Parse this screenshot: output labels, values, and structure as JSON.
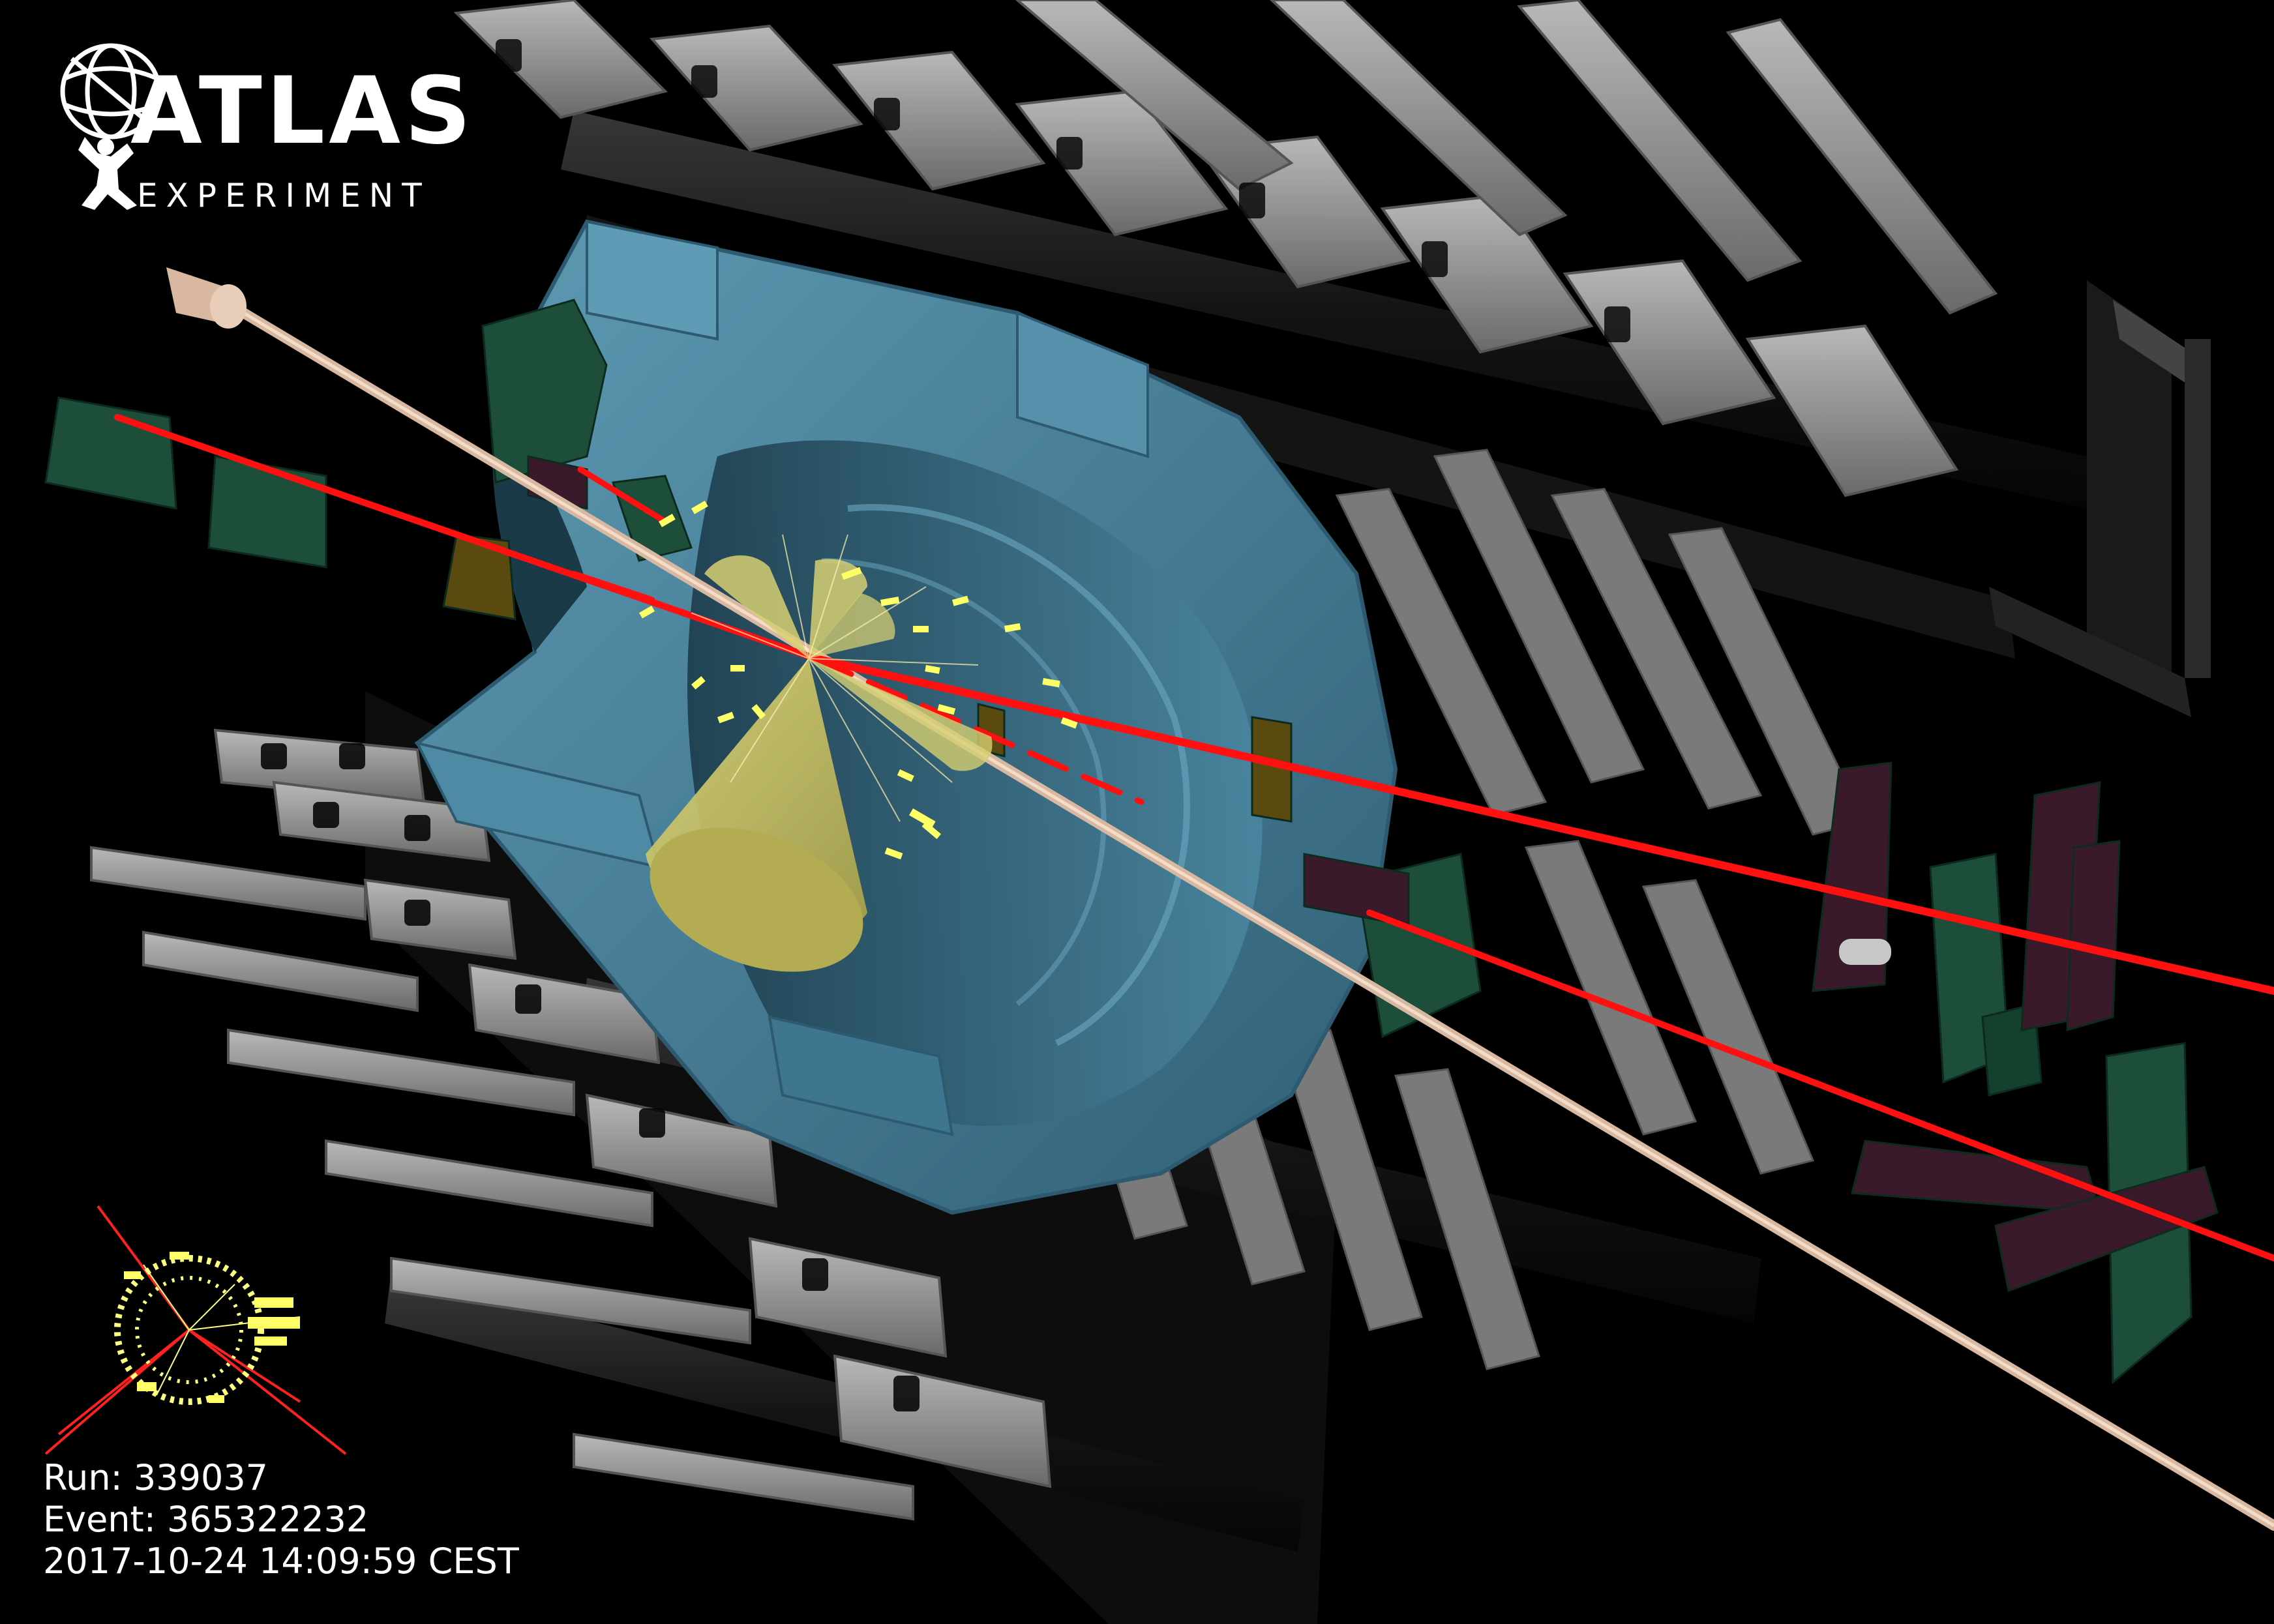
{
  "logo": {
    "title": "ATLAS",
    "subtitle": "EXPERIMENT",
    "icon": "atlas-globe-icon"
  },
  "event_info": {
    "run": "Run: 339037",
    "event": "Event: 365322232",
    "timestamp": "2017-10-24 14:09:59 CEST"
  },
  "colors": {
    "background": "#000000",
    "calorimeter": "#4e8aa3",
    "calorimeter_dark": "#3a6e86",
    "muon_track": "#ff0000",
    "jet_cone": "#c9c060",
    "energy_deposit": "#ffff66",
    "support_structure": "#8a8a8a",
    "support_dark": "#1c1c1c",
    "muon_chamber_green": "#1c4e3a",
    "muon_chamber_purple": "#3a1a2a",
    "muon_chamber_olive": "#5a4a10",
    "beam_pipe": "#d8b8a0"
  }
}
